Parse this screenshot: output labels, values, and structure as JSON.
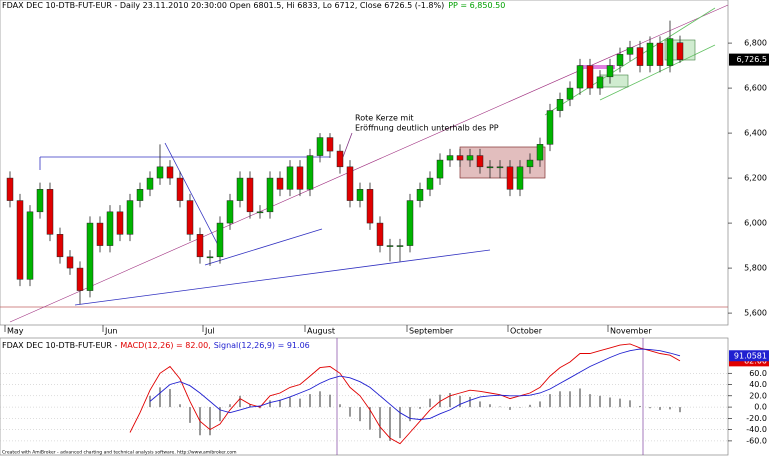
{
  "chart_data": [
    {
      "type": "candlestick",
      "title": "FDAX DEC 10-DTB-FUT-EUR - Daily 23.11.2010 20:30:00 Open 6801.5, Hi 6833, Lo 6712, Close 6726.5 (-1.8%)",
      "pp_label": "PP = 6,850.50",
      "annotation": [
        "Rote Kerze mit",
        "Eröffnung deutlich unterhalb des PP"
      ],
      "close_label": "6,726.5",
      "up_color": "#00b400",
      "down_color": "#e00000",
      "xlim": [
        -1,
        71.8
      ],
      "xticks": [
        {
          "value": -0.5,
          "label": "May"
        },
        {
          "value": 9.3,
          "label": "Jun"
        },
        {
          "value": 19.3,
          "label": "Jul"
        },
        {
          "value": 29.5,
          "label": "August"
        },
        {
          "value": 39.7,
          "label": "September"
        },
        {
          "value": 49.8,
          "label": "October"
        },
        {
          "value": 59.8,
          "label": "November"
        }
      ],
      "ylim": [
        5547,
        6947
      ],
      "yticks": [
        {
          "value": 5600,
          "label": "5,600"
        },
        {
          "value": 5800,
          "label": "5,800"
        },
        {
          "value": 6000,
          "label": "6,000"
        },
        {
          "value": 6200,
          "label": "6,200"
        },
        {
          "value": 6400,
          "label": "6,400"
        },
        {
          "value": 6600,
          "label": "6,600"
        },
        {
          "value": 6800,
          "label": "6,800"
        }
      ],
      "grid": false,
      "open": [
        6200,
        6100,
        5750,
        6050,
        6150,
        5950,
        5850,
        5800,
        5700,
        6000,
        5900,
        6050,
        5950,
        6100,
        6150,
        6200,
        6250,
        6200,
        6100,
        5950,
        5850,
        5850,
        6000,
        6100,
        6200,
        6050,
        6050,
        6200,
        6150,
        6250,
        6150,
        6300,
        6380,
        6320,
        6250,
        6100,
        6150,
        6000,
        5900,
        5900,
        5900,
        6100,
        6150,
        6200,
        6280,
        6300,
        6280,
        6300,
        6250,
        6250,
        6250,
        6150,
        6250,
        6280,
        6350,
        6500,
        6550,
        6600,
        6700,
        6600,
        6650,
        6700,
        6750,
        6780,
        6700,
        6800,
        6700,
        6801.5
      ],
      "high": [
        6230,
        6130,
        6080,
        6180,
        6180,
        5980,
        5880,
        5830,
        6030,
        6030,
        6080,
        6080,
        6130,
        6180,
        6230,
        6350,
        6280,
        6230,
        6130,
        5980,
        5880,
        6030,
        6130,
        6230,
        6230,
        6080,
        6230,
        6230,
        6280,
        6280,
        6330,
        6400,
        6400,
        6350,
        6280,
        6180,
        6180,
        6030,
        5930,
        5930,
        6130,
        6180,
        6230,
        6310,
        6330,
        6330,
        6330,
        6330,
        6280,
        6280,
        6280,
        6280,
        6310,
        6380,
        6530,
        6580,
        6630,
        6730,
        6730,
        6680,
        6730,
        6780,
        6810,
        6810,
        6830,
        6830,
        6900,
        6833
      ],
      "low": [
        6070,
        5720,
        5720,
        6020,
        5920,
        5820,
        5770,
        5640,
        5670,
        5870,
        5870,
        5920,
        5920,
        6070,
        6120,
        6170,
        6170,
        6070,
        5920,
        5820,
        5810,
        5820,
        5970,
        6070,
        6020,
        6020,
        6020,
        6120,
        6120,
        6120,
        6120,
        6270,
        6290,
        6220,
        6070,
        6070,
        5970,
        5870,
        5830,
        5830,
        5870,
        6070,
        6120,
        6170,
        6250,
        6250,
        6250,
        6220,
        6200,
        6200,
        6120,
        6120,
        6220,
        6250,
        6320,
        6470,
        6520,
        6570,
        6570,
        6570,
        6620,
        6670,
        6720,
        6670,
        6670,
        6670,
        6670,
        6712
      ],
      "close": [
        6100,
        5750,
        6050,
        6150,
        5950,
        5850,
        5800,
        5700,
        6000,
        5900,
        6050,
        5950,
        6100,
        6150,
        6200,
        6250,
        6200,
        6100,
        5950,
        5850,
        5850,
        6000,
        6100,
        6200,
        6050,
        6050,
        6200,
        6150,
        6250,
        6150,
        6300,
        6380,
        6320,
        6250,
        6100,
        6150,
        6000,
        5900,
        5900,
        5900,
        6100,
        6150,
        6200,
        6280,
        6300,
        6280,
        6300,
        6250,
        6250,
        6250,
        6150,
        6250,
        6280,
        6350,
        6500,
        6550,
        6600,
        6700,
        6600,
        6650,
        6700,
        6750,
        6780,
        6700,
        6800,
        6700,
        6820,
        6726.5
      ]
    },
    {
      "type": "line",
      "title": "FDAX DEC 10-DTB-FUT-EUR -",
      "xlim": [
        -1,
        71.8
      ],
      "ylim": [
        -85,
        119
      ],
      "yticks": [
        {
          "value": 60,
          "label": "60.0"
        },
        {
          "value": 40,
          "label": "40.0"
        },
        {
          "value": 20,
          "label": "20.0"
        },
        {
          "value": 0,
          "label": "0.0"
        },
        {
          "value": -20,
          "label": "-20.0"
        },
        {
          "value": -40,
          "label": "-40.0"
        },
        {
          "value": -60,
          "label": "-60.0"
        }
      ],
      "grid": true,
      "series": [
        {
          "name": "MACD(12,26) = 82.00,",
          "color": "#e00000",
          "end_label": "82.00",
          "values": [
            null,
            null,
            null,
            null,
            null,
            null,
            null,
            null,
            null,
            null,
            null,
            null,
            -45,
            -10,
            30,
            60,
            72,
            50,
            10,
            -25,
            -40,
            -30,
            -5,
            15,
            5,
            0,
            20,
            25,
            35,
            40,
            55,
            70,
            72,
            60,
            35,
            20,
            -5,
            -35,
            -55,
            -65,
            -45,
            -25,
            -5,
            10,
            20,
            25,
            30,
            28,
            25,
            22,
            15,
            20,
            25,
            35,
            55,
            70,
            80,
            95,
            95,
            100,
            105,
            110,
            112,
            105,
            100,
            95,
            92,
            82
          ]
        },
        {
          "name": "Signal(12,26,9) = 91.06",
          "color": "#2020d0",
          "end_label": "91.0581",
          "values": [
            null,
            null,
            null,
            null,
            null,
            null,
            null,
            null,
            null,
            null,
            null,
            null,
            null,
            null,
            10,
            25,
            40,
            45,
            38,
            25,
            10,
            -5,
            -10,
            -5,
            0,
            2,
            8,
            12,
            18,
            25,
            32,
            42,
            50,
            55,
            52,
            45,
            35,
            20,
            5,
            -10,
            -20,
            -22,
            -20,
            -12,
            -5,
            5,
            12,
            18,
            20,
            21,
            20,
            20,
            21,
            25,
            32,
            42,
            52,
            62,
            72,
            80,
            88,
            95,
            100,
            103,
            102,
            100,
            96,
            91.0581
          ]
        }
      ],
      "histogram_color": "#555555",
      "histogram": [
        null,
        null,
        null,
        null,
        null,
        null,
        null,
        null,
        null,
        null,
        null,
        null,
        null,
        null,
        20,
        35,
        32,
        5,
        -28,
        -50,
        -50,
        -25,
        5,
        20,
        5,
        -2,
        12,
        13,
        17,
        15,
        23,
        28,
        22,
        5,
        -17,
        -25,
        -40,
        -55,
        -60,
        -55,
        -25,
        -3,
        15,
        22,
        25,
        20,
        18,
        10,
        5,
        1,
        -5,
        0,
        4,
        10,
        23,
        28,
        28,
        33,
        23,
        20,
        17,
        15,
        12,
        2,
        -2,
        -5,
        -4,
        -9.06
      ]
    }
  ],
  "footer": "Created with AmiBroker - advanced charting and technical analysis software. http://www.amibroker.com"
}
